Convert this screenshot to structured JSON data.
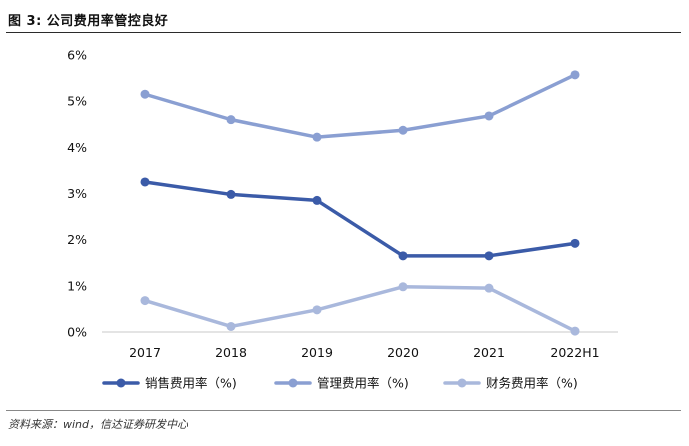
{
  "figure": {
    "title": "图 3:  公司费用率管控良好",
    "source": "资料来源：wind，信达证券研发中心"
  },
  "chart_data": {
    "type": "line",
    "title": "",
    "xlabel": "",
    "ylabel": "",
    "categories": [
      "2017",
      "2018",
      "2019",
      "2020",
      "2021",
      "2022H1"
    ],
    "ylim": [
      0,
      6
    ],
    "yticks": [
      "0%",
      "1%",
      "2%",
      "3%",
      "4%",
      "5%",
      "6%"
    ],
    "grid": false,
    "legend_position": "bottom",
    "series": [
      {
        "name": "销售费用率（%)",
        "values": [
          3.25,
          2.98,
          2.85,
          1.65,
          1.65,
          1.92
        ],
        "color": "#3b5ba8"
      },
      {
        "name": "管理费用率（%)",
        "values": [
          5.15,
          4.6,
          4.22,
          4.37,
          4.68,
          5.57
        ],
        "color": "#8a9fd2"
      },
      {
        "name": "财务费用率（%)",
        "values": [
          0.68,
          0.12,
          0.48,
          0.98,
          0.95,
          0.02
        ],
        "color": "#a9b8dc"
      }
    ]
  }
}
